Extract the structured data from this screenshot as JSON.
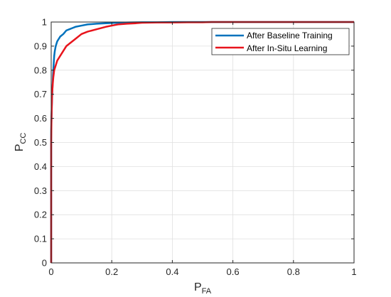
{
  "chart_data": {
    "type": "line",
    "title": "",
    "xlabel": {
      "main": "P",
      "sub": "FA"
    },
    "ylabel": {
      "main": "P",
      "sub": "CC"
    },
    "xlim": [
      0,
      1
    ],
    "ylim": [
      0,
      1
    ],
    "xticks": [
      "0",
      "0.2",
      "0.4",
      "0.6",
      "0.8",
      "1"
    ],
    "yticks": [
      "0",
      "0.1",
      "0.2",
      "0.3",
      "0.4",
      "0.5",
      "0.6",
      "0.7",
      "0.8",
      "0.9",
      "1"
    ],
    "grid": true,
    "legend": "top-right",
    "series": [
      {
        "name": "After Baseline Training",
        "color": "#0072BD",
        "x": [
          0,
          0,
          0.002,
          0.004,
          0.006,
          0.008,
          0.01,
          0.012,
          0.015,
          0.02,
          0.025,
          0.03,
          0.04,
          0.05,
          0.06,
          0.07,
          0.08,
          0.1,
          0.12,
          0.15,
          0.18,
          0.22,
          0.26,
          0.3,
          0.35,
          0.4,
          0.45,
          0.5,
          0.6,
          0.7,
          0.8,
          0.9,
          1
        ],
        "y": [
          0,
          0.55,
          0.65,
          0.72,
          0.78,
          0.82,
          0.86,
          0.88,
          0.9,
          0.92,
          0.93,
          0.94,
          0.95,
          0.965,
          0.97,
          0.975,
          0.98,
          0.985,
          0.99,
          0.993,
          0.995,
          0.997,
          0.998,
          0.999,
          0.999,
          1,
          1,
          1,
          1,
          1,
          1,
          1,
          1
        ]
      },
      {
        "name": "After In-Situ Learning",
        "color": "#E8141C",
        "x": [
          0,
          0,
          0.001,
          0.002,
          0.003,
          0.005,
          0.007,
          0.01,
          0.015,
          0.02,
          0.03,
          0.04,
          0.05,
          0.06,
          0.08,
          0.1,
          0.12,
          0.15,
          0.18,
          0.2,
          0.22,
          0.25,
          0.28,
          0.3,
          0.35,
          0.4,
          0.45,
          0.5,
          0.53,
          0.6,
          0.7,
          0.8,
          0.9,
          1
        ],
        "y": [
          0,
          0.5,
          0.6,
          0.65,
          0.7,
          0.74,
          0.77,
          0.8,
          0.82,
          0.84,
          0.86,
          0.88,
          0.9,
          0.91,
          0.93,
          0.95,
          0.96,
          0.97,
          0.98,
          0.985,
          0.99,
          0.993,
          0.995,
          0.997,
          0.998,
          0.998,
          0.999,
          0.999,
          1,
          1,
          1,
          1,
          1,
          1
        ]
      }
    ]
  }
}
